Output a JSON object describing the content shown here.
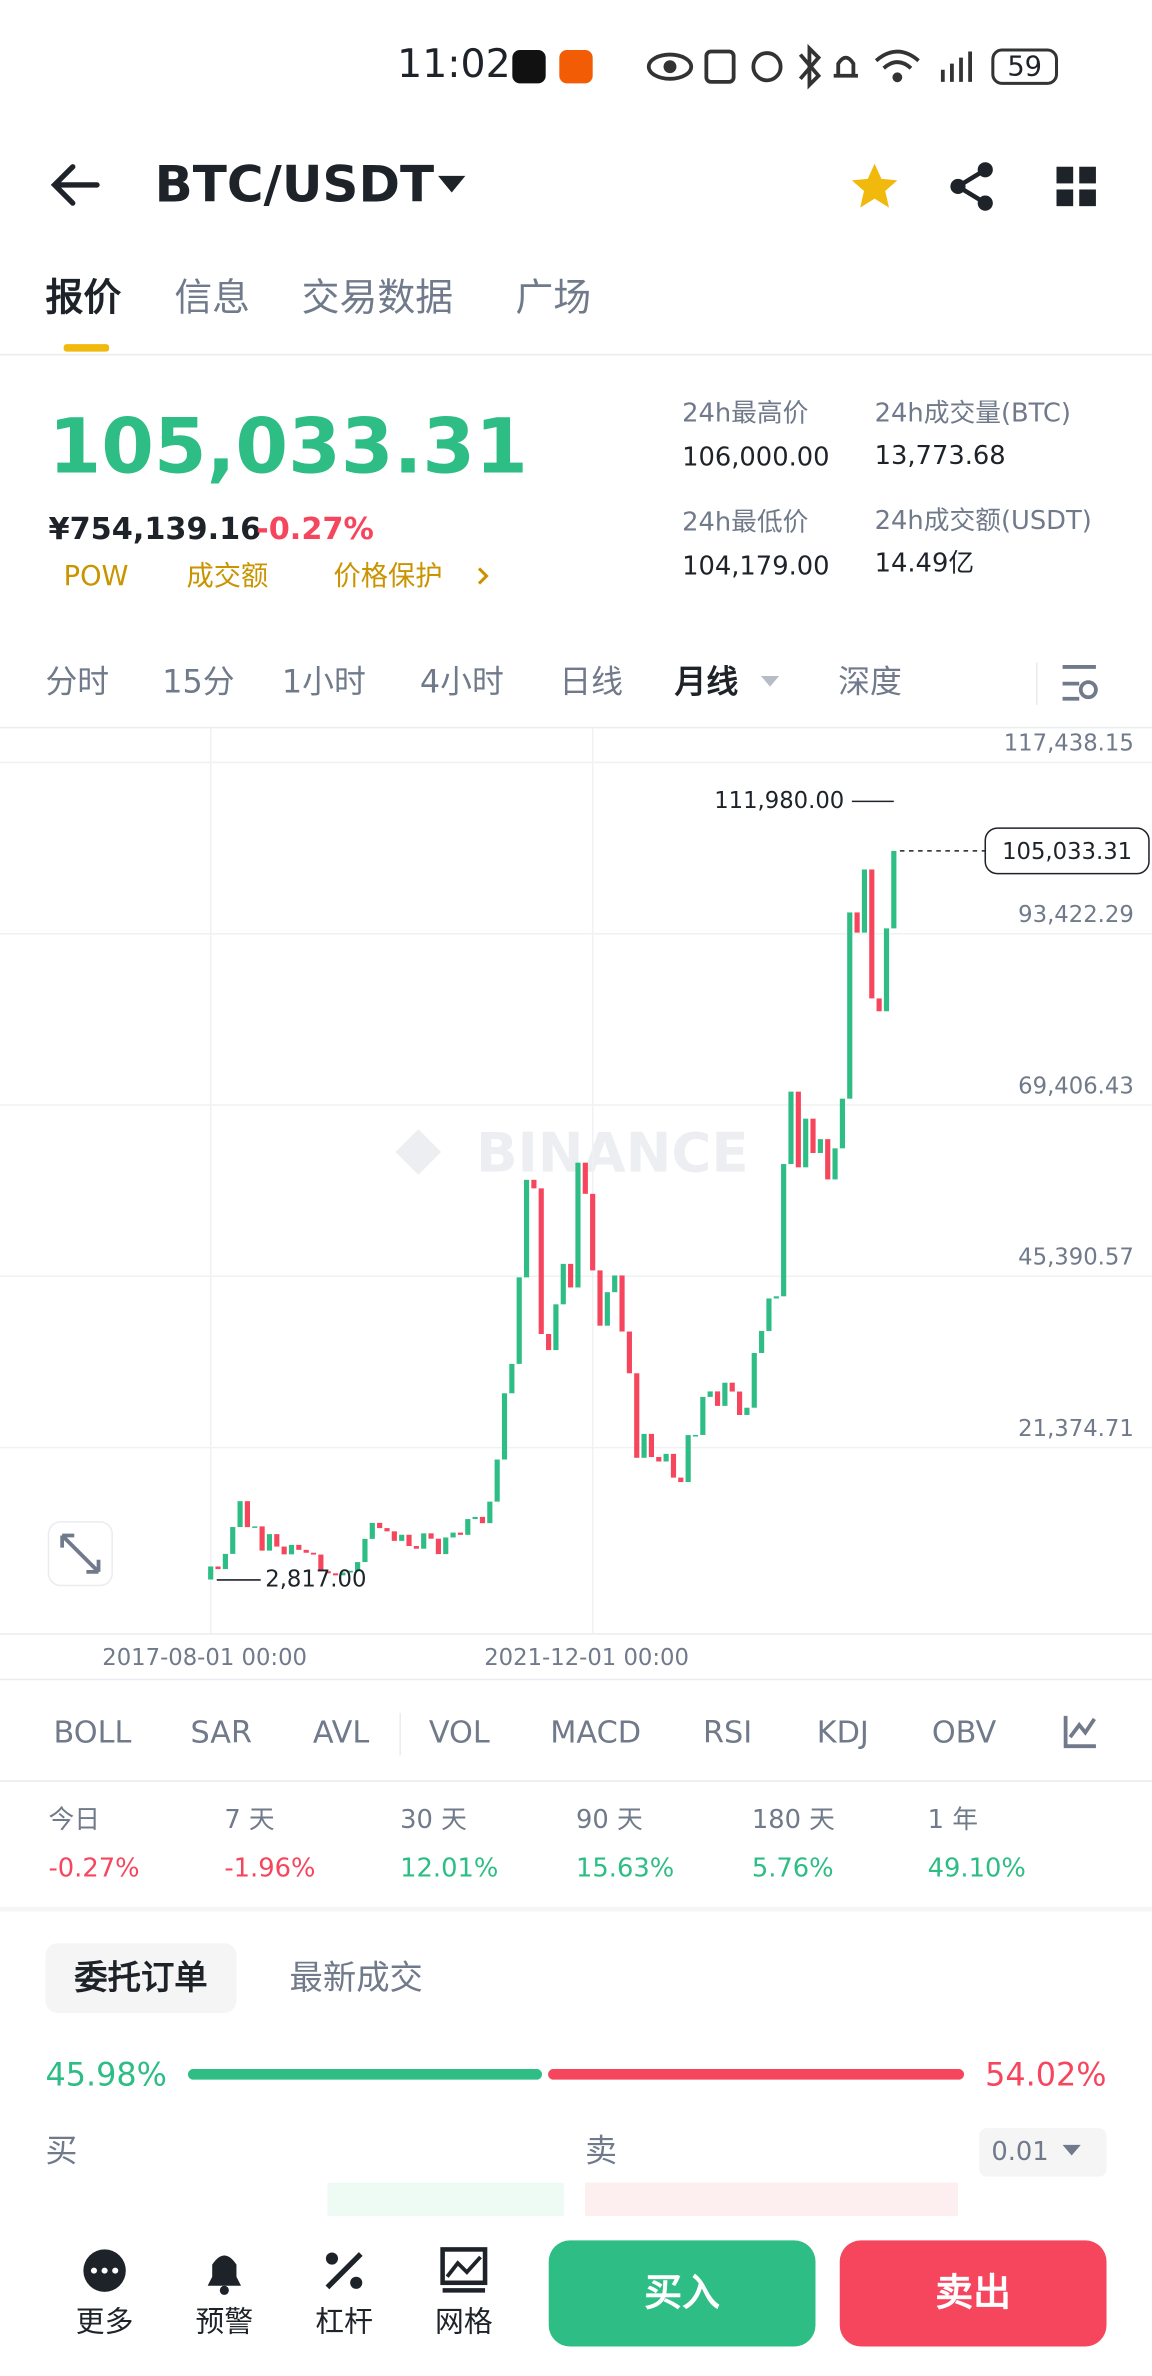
{
  "status": {
    "time": "11:02",
    "battery": "59"
  },
  "header": {
    "pair": "BTC/USDT"
  },
  "tabs": [
    "报价",
    "信息",
    "交易数据",
    "广场"
  ],
  "price": {
    "last": "105,033.31",
    "cny": "¥754,139.16",
    "change": "-0.27%",
    "tags": [
      "POW",
      "成交额",
      "价格保护"
    ]
  },
  "stats": [
    {
      "label": "24h最高价",
      "value": "106,000.00"
    },
    {
      "label": "24h成交量(BTC)",
      "value": "13,773.68"
    },
    {
      "label": "24h最低价",
      "value": "104,179.00"
    },
    {
      "label": "24h成交额(USDT)",
      "value": "14.49亿"
    }
  ],
  "intervals": [
    "分时",
    "15分",
    "1小时",
    "4小时",
    "日线",
    "月线",
    "深度"
  ],
  "chart": {
    "type": "candlestick",
    "watermark": "BINANCE",
    "ylim": [
      -4767,
      122325
    ],
    "yticks": [
      {
        "value": 117438.15,
        "label": "117,438.15"
      },
      {
        "value": 93422.29,
        "label": "93,422.29"
      },
      {
        "value": 69406.43,
        "label": "69,406.43"
      },
      {
        "value": 45390.57,
        "label": "45,390.57"
      },
      {
        "value": 21374.71,
        "label": "21,374.71"
      }
    ],
    "xticks": [
      "2017-08-01 00:00",
      "2021-12-01 00:00"
    ],
    "closes": [
      2875,
      4703,
      4338,
      6468,
      10233,
      13860,
      10221,
      10326,
      6926,
      9240,
      7495,
      6404,
      7730,
      7035,
      6626,
      6372,
      4041,
      3742,
      3458,
      3854,
      4103,
      5321,
      8574,
      10817,
      10085,
      9630,
      8294,
      9152,
      7569,
      7194,
      9350,
      8600,
      6438,
      8772,
      9454,
      9138,
      11350,
      11656,
      10776,
      13797,
      19700,
      28990,
      33108,
      45240,
      58919,
      57721,
      37298,
      35045,
      41461,
      47131,
      43824,
      61319,
      56951,
      46217,
      38467,
      43160,
      45510,
      37644,
      31793,
      19942,
      23293,
      20050,
      19423,
      20491,
      17164,
      16542,
      23125,
      23142,
      28478,
      29252,
      27220,
      30472,
      29232,
      25941,
      26963,
      34639,
      37724,
      42284,
      42583,
      61130,
      71280,
      60667,
      67491,
      62678,
      64619,
      58973,
      63330,
      70292,
      96408,
      93576,
      102430,
      84350,
      82550,
      94172,
      105033.31
    ],
    "high": {
      "value": 111980,
      "label": "111,980.00"
    },
    "low": {
      "value": 2817,
      "label": "2,817.00"
    },
    "last": {
      "value": 105033.31,
      "label": "105,033.31"
    }
  },
  "indicators": [
    "BOLL",
    "SAR",
    "AVL",
    "VOL",
    "MACD",
    "RSI",
    "KDJ",
    "OBV"
  ],
  "performance": [
    {
      "period": "今日",
      "change": "-0.27%"
    },
    {
      "period": "7 天",
      "change": "-1.96%"
    },
    {
      "period": "30 天",
      "change": "12.01%"
    },
    {
      "period": "90 天",
      "change": "15.63%"
    },
    {
      "period": "180 天",
      "change": "5.76%"
    },
    {
      "period": "1 年",
      "change": "49.10%"
    }
  ],
  "orders": {
    "tabs": [
      "委托订单",
      "最新成交"
    ],
    "buy_ratio": {
      "value": 45.98,
      "label": "45.98%"
    },
    "sell_ratio": {
      "value": 54.02,
      "label": "54.02%"
    },
    "buy_label": "买",
    "sell_label": "卖",
    "precision": "0.01"
  },
  "bottom": {
    "nav": [
      "更多",
      "预警",
      "杠杆",
      "网格"
    ],
    "buy": "买入",
    "sell": "卖出"
  }
}
